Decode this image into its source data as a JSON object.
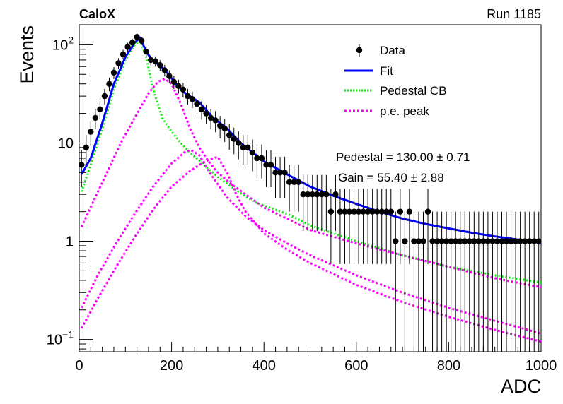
{
  "header": {
    "experiment": "CaloX",
    "run": "Run 1185"
  },
  "stats": {
    "line1": "Pedestal = 130.00 ± 0.71",
    "line2": "Gain = 55.40 ± 2.88"
  },
  "legend": {
    "position": "top-right",
    "entries": [
      {
        "label": "Data",
        "kind": "marker"
      },
      {
        "label": "Fit",
        "kind": "solid"
      },
      {
        "label": "Pedestal CB",
        "kind": "dotted"
      },
      {
        "label": "p.e. peak",
        "kind": "dashed"
      }
    ]
  },
  "colors": {
    "data": "#000000",
    "fit": "#0000ff",
    "pedestal": "#00ee00",
    "pe": "#ff00ff"
  },
  "chart_data": {
    "type": "scatter",
    "xlabel": "ADC",
    "ylabel": "Events",
    "xlim": [
      0,
      1000
    ],
    "ylim": [
      0.075,
      160
    ],
    "yscale": "log",
    "xticks": [
      0,
      200,
      400,
      600,
      800,
      1000
    ],
    "yticks": [
      {
        "value": 0.1,
        "base": "10",
        "exp": "−1"
      },
      {
        "value": 1,
        "text": "1"
      },
      {
        "value": 10,
        "text": "10"
      },
      {
        "value": 100,
        "base": "10",
        "exp": "2"
      }
    ],
    "grid": false,
    "data": {
      "x": [
        5,
        15,
        25,
        35,
        45,
        55,
        65,
        75,
        85,
        95,
        105,
        115,
        125,
        135,
        145,
        155,
        165,
        175,
        185,
        195,
        205,
        215,
        225,
        235,
        245,
        255,
        265,
        275,
        285,
        295,
        305,
        315,
        325,
        335,
        345,
        355,
        365,
        375,
        385,
        395,
        405,
        415,
        425,
        435,
        445,
        455,
        465,
        475,
        485,
        495,
        505,
        515,
        525,
        535,
        545,
        555,
        565,
        575,
        585,
        595,
        605,
        615,
        625,
        635,
        645,
        655,
        665,
        675,
        685,
        695,
        705,
        715,
        725,
        735,
        745,
        755,
        765,
        775,
        785,
        795,
        805,
        815,
        825,
        835,
        845,
        855,
        865,
        875,
        885,
        895,
        905,
        915,
        925,
        935,
        945,
        955,
        965,
        975,
        985,
        995
      ],
      "y": [
        6,
        9,
        13,
        18,
        22,
        30,
        40,
        52,
        65,
        80,
        95,
        105,
        120,
        110,
        85,
        70,
        68,
        62,
        55,
        48,
        42,
        38,
        35,
        30,
        28,
        25,
        22,
        20,
        18,
        17,
        15,
        14,
        12,
        11,
        10,
        9,
        9,
        8,
        7,
        7,
        6,
        6,
        5,
        5,
        5,
        4,
        4,
        4,
        3,
        3,
        3,
        3,
        3,
        3,
        2,
        3,
        2,
        2,
        2,
        2,
        2,
        2,
        2,
        2,
        2,
        2,
        2,
        2,
        1,
        2,
        1,
        2,
        1,
        1,
        1,
        2,
        1,
        1,
        1,
        1,
        1,
        1,
        1,
        1,
        1,
        1,
        1,
        1,
        1,
        1,
        1,
        1,
        1,
        1,
        1,
        1,
        1,
        1,
        1,
        1
      ]
    },
    "series": [
      {
        "name": "Fit",
        "x": [
          5,
          25,
          50,
          75,
          100,
          120,
          132,
          145,
          160,
          175,
          190,
          210,
          230,
          260,
          290,
          320,
          350,
          400,
          450,
          500,
          550,
          600,
          650,
          700,
          750,
          800,
          850,
          900,
          950,
          1000
        ],
        "y": [
          4.8,
          7,
          16,
          40,
          75,
          105,
          118,
          85,
          68,
          62,
          52,
          40,
          32,
          26,
          18,
          14,
          10,
          6.5,
          4.8,
          3.6,
          2.9,
          2.4,
          2.0,
          1.7,
          1.5,
          1.35,
          1.22,
          1.12,
          1.04,
          0.96
        ]
      },
      {
        "name": "Pedestal CB",
        "x": [
          5,
          25,
          50,
          75,
          100,
          120,
          132,
          145,
          160,
          180,
          200,
          220,
          240,
          270,
          300,
          340,
          380,
          450,
          500,
          600,
          700,
          800,
          900,
          1000
        ],
        "y": [
          3.2,
          6,
          14,
          35,
          70,
          100,
          110,
          75,
          35,
          18,
          13,
          10,
          8,
          6,
          4.5,
          3.3,
          2.5,
          1.9,
          1.45,
          1.0,
          0.72,
          0.55,
          0.45,
          0.38
        ]
      },
      {
        "name": "p.e. peak",
        "x": [
          5,
          30,
          60,
          90,
          120,
          150,
          170,
          185,
          200,
          220,
          240,
          260,
          280,
          300,
          330,
          360,
          400,
          450,
          500,
          600,
          700,
          800,
          900,
          1000
        ],
        "y": [
          1.4,
          2.5,
          5,
          10,
          18,
          32,
          42,
          45,
          40,
          25,
          14,
          9,
          6.5,
          5,
          3.8,
          3,
          2.2,
          1.7,
          1.3,
          0.95,
          0.72,
          0.55,
          0.42,
          0.34
        ]
      },
      {
        "name": "p.e. peak",
        "x": [
          5,
          40,
          80,
          120,
          160,
          200,
          230,
          242,
          260,
          280,
          320,
          360,
          400,
          450,
          500,
          600,
          700,
          800,
          900,
          1000
        ],
        "y": [
          0.21,
          0.45,
          0.95,
          1.9,
          3.6,
          6.2,
          8.2,
          8.5,
          7.5,
          5.2,
          2.8,
          1.8,
          1.3,
          0.95,
          0.72,
          0.45,
          0.3,
          0.21,
          0.155,
          0.115
        ]
      },
      {
        "name": "p.e. peak",
        "x": [
          5,
          40,
          80,
          120,
          160,
          200,
          240,
          270,
          290,
          300,
          320,
          340,
          360,
          400,
          450,
          500,
          600,
          700,
          800,
          900,
          1000
        ],
        "y": [
          0.13,
          0.26,
          0.55,
          1.1,
          2.1,
          3.6,
          5.2,
          6.4,
          7.0,
          7.2,
          5.0,
          3.0,
          2.0,
          1.2,
          0.82,
          0.6,
          0.36,
          0.24,
          0.17,
          0.125,
          0.095
        ]
      }
    ]
  }
}
